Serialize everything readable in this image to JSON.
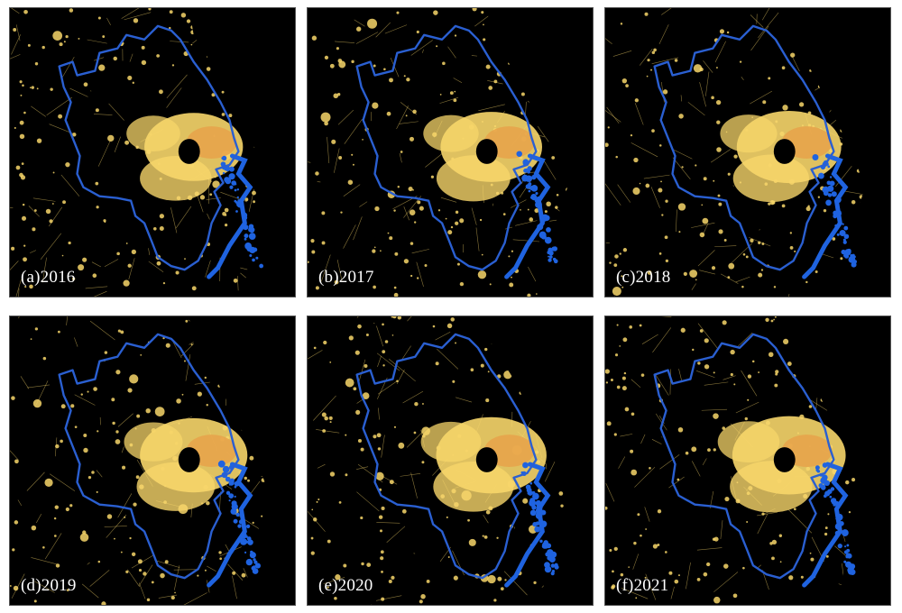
{
  "figure": {
    "panels": [
      {
        "id": "a",
        "label": "(a)2016"
      },
      {
        "id": "b",
        "label": "(b)2017"
      },
      {
        "id": "c",
        "label": "(c)2018"
      },
      {
        "id": "d",
        "label": "(d)2019"
      },
      {
        "id": "e",
        "label": "(e)2020"
      },
      {
        "id": "f",
        "label": "(f)2021"
      }
    ],
    "colors": {
      "background": "#000000",
      "light_low": "#f7d66a",
      "light_high": "#e8a24a",
      "boundary": "#2a5fd1",
      "sea_coast": "#1f63e0"
    }
  }
}
